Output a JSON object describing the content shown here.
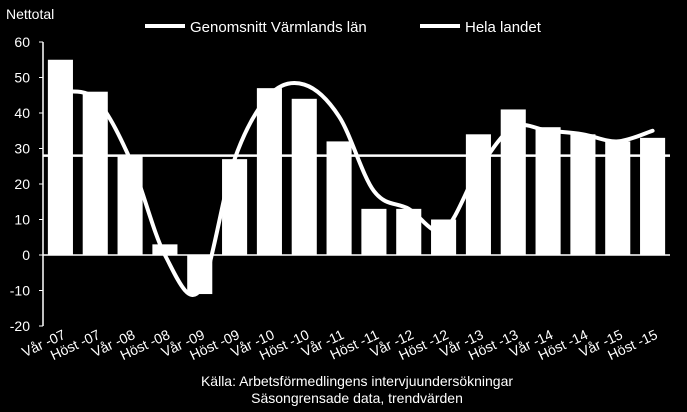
{
  "chart_data": {
    "type": "bar",
    "ylabel": "Nettotal",
    "ylim": [
      -20,
      60
    ],
    "yticks": [
      60,
      50,
      40,
      30,
      20,
      10,
      0,
      -10,
      -20
    ],
    "categories": [
      "Vår -07",
      "Höst -07",
      "Vår -08",
      "Höst -08",
      "Vår -09",
      "Höst -09",
      "Vår -10",
      "Höst -10",
      "Vår -11",
      "Höst -11",
      "Vår -12",
      "Höst -12",
      "Vår -13",
      "Höst -13",
      "Vår -14",
      "Höst -14",
      "Vår -15",
      "Höst -15"
    ],
    "series": [
      {
        "name": "Genomsnitt Värmlands  län",
        "kind": "bar",
        "values": [
          55,
          46,
          28,
          3,
          -11,
          27,
          47,
          44,
          32,
          13,
          13,
          10,
          34,
          41,
          36,
          34,
          32,
          33
        ]
      },
      {
        "name": "Hela landet",
        "kind": "line",
        "values": [
          46,
          44,
          27,
          0,
          -10,
          27,
          45,
          48,
          39,
          18,
          13,
          7,
          24,
          36,
          35,
          34,
          32,
          35
        ]
      },
      {
        "name": "",
        "kind": "reference-line",
        "value": 28
      }
    ],
    "grid": false,
    "legend_position": "top",
    "colors": {
      "background": "#000000",
      "bars": "#ffffff",
      "line": "#ffffff",
      "axis": "#ffffff"
    }
  },
  "source": {
    "line1": "Källa: Arbetsförmedlingens intervjuundersökningar",
    "line2": "Säsongrensade data, trendvärden"
  }
}
